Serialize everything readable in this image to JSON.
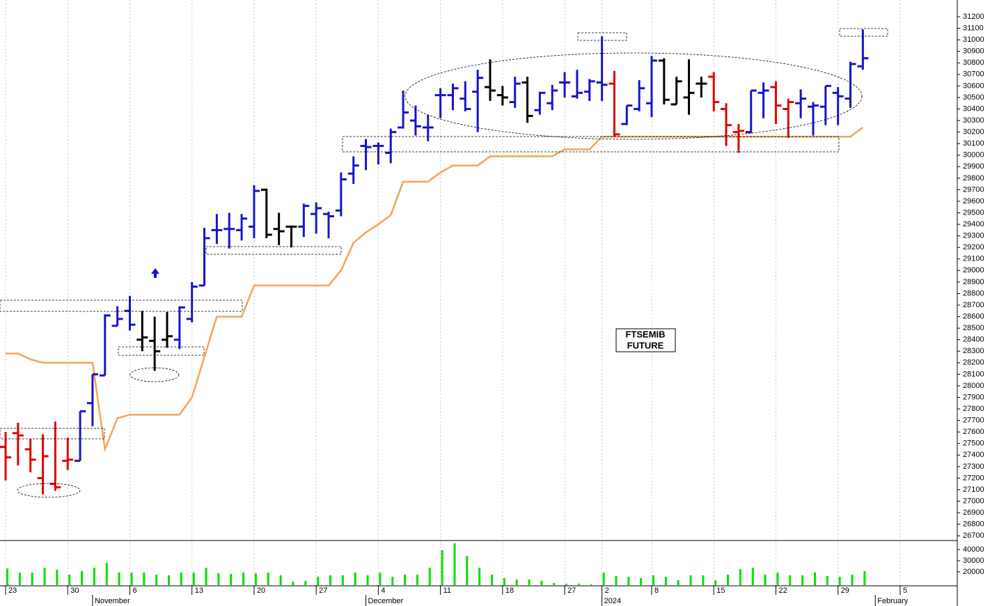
{
  "chart_data": {
    "type": "ohlc",
    "annotation": [
      "FTSEMIB",
      "FUTURE"
    ],
    "xlim": [
      -0.45,
      76.6
    ],
    "xticks": [
      {
        "value": 0,
        "label": "23"
      },
      {
        "value": 5,
        "label": "30"
      },
      {
        "value": 10,
        "label": "6"
      },
      {
        "value": 15,
        "label": "13"
      },
      {
        "value": 20,
        "label": "20"
      },
      {
        "value": 25,
        "label": "27"
      },
      {
        "value": 30,
        "label": "4"
      },
      {
        "value": 35,
        "label": "11"
      },
      {
        "value": 40,
        "label": "18"
      },
      {
        "value": 45,
        "label": "27"
      },
      {
        "value": 48,
        "label": "2"
      },
      {
        "value": 52,
        "label": "8"
      },
      {
        "value": 57,
        "label": "15"
      },
      {
        "value": 62,
        "label": "22"
      },
      {
        "value": 67,
        "label": "29"
      },
      {
        "value": 72,
        "label": "5"
      }
    ],
    "month_ticks": [
      {
        "value": 7,
        "label": "November"
      },
      {
        "value": 29,
        "label": "December"
      },
      {
        "value": 48,
        "label": "2024"
      },
      {
        "value": 70,
        "label": "February"
      }
    ],
    "grid": true,
    "ylim": [
      26665,
      31345
    ],
    "yticks": [
      26700,
      26800,
      26900,
      27000,
      27100,
      27200,
      27300,
      27400,
      27500,
      27600,
      27700,
      27800,
      27900,
      28000,
      28100,
      28200,
      28300,
      28400,
      28500,
      28600,
      28700,
      28800,
      28900,
      29000,
      29100,
      29200,
      29300,
      29400,
      29500,
      29600,
      29700,
      29800,
      29900,
      30000,
      30100,
      30200,
      30300,
      30400,
      30500,
      30600,
      30700,
      30800,
      30900,
      31000,
      31100,
      31200
    ],
    "open": [
      27470,
      27590,
      27450,
      27200,
      27150,
      27350,
      27350,
      27850,
      28090,
      28520,
      28650,
      28400,
      28390,
      28400,
      28400,
      28580,
      28870,
      29350,
      29360,
      29350,
      29380,
      29700,
      29360,
      29380,
      29380,
      29490,
      29490,
      29520,
      29840,
      30080,
      30080,
      30020,
      30240,
      30300,
      30240,
      30520,
      30520,
      30490,
      30550,
      30590,
      30520,
      30460,
      30630,
      30390,
      30450,
      30630,
      30510,
      30550,
      30630,
      30620,
      30270,
      30400,
      30450,
      30820,
      30440,
      30500,
      30620,
      30680,
      30400,
      30200,
      30200,
      30540,
      30590,
      30400,
      30450,
      30420,
      30420,
      30540,
      30490,
      30770
    ],
    "high": [
      27600,
      27680,
      27540,
      27580,
      27690,
      27550,
      27780,
      28100,
      28620,
      28690,
      28780,
      28650,
      28600,
      28640,
      28690,
      28900,
      29370,
      29490,
      29500,
      29490,
      29740,
      29710,
      29500,
      29390,
      29580,
      29590,
      29510,
      29850,
      29990,
      30140,
      30110,
      30230,
      30560,
      30430,
      30350,
      30580,
      30620,
      30640,
      30740,
      30830,
      30600,
      30680,
      30680,
      30550,
      30610,
      30720,
      30740,
      30660,
      31030,
      30730,
      30430,
      30650,
      30860,
      30840,
      30680,
      30830,
      30680,
      30720,
      30450,
      30270,
      30560,
      30630,
      30640,
      30490,
      30570,
      30460,
      30600,
      30590,
      30810,
      31090
    ],
    "low": [
      27180,
      27310,
      27250,
      27060,
      27090,
      27270,
      27350,
      27650,
      28090,
      28520,
      28480,
      28300,
      28130,
      28330,
      28320,
      28550,
      28870,
      29230,
      29190,
      29260,
      29280,
      29280,
      29220,
      29200,
      29290,
      29320,
      29280,
      29470,
      29750,
      29870,
      29920,
      29930,
      30230,
      30170,
      30120,
      30320,
      30390,
      30380,
      30200,
      30470,
      30430,
      30410,
      30280,
      30350,
      30390,
      30500,
      30490,
      30470,
      30470,
      30160,
      30260,
      30380,
      30330,
      30440,
      30440,
      30350,
      30500,
      30380,
      30080,
      30020,
      30190,
      30320,
      30270,
      30150,
      30320,
      30170,
      30260,
      30260,
      30410,
      30740
    ],
    "close": [
      27380,
      27570,
      27360,
      27390,
      27120,
      27360,
      27780,
      28100,
      28610,
      28580,
      28530,
      28420,
      28300,
      28430,
      28680,
      28860,
      29280,
      29350,
      29360,
      29450,
      29690,
      29310,
      29340,
      29380,
      29560,
      29540,
      29470,
      29790,
      29910,
      30070,
      30080,
      30200,
      30370,
      30250,
      30240,
      30520,
      30580,
      30400,
      30670,
      30560,
      30500,
      30620,
      30340,
      30540,
      30560,
      30630,
      30540,
      30640,
      30610,
      30180,
      30430,
      30580,
      30820,
      30480,
      30640,
      30540,
      30620,
      30460,
      30260,
      30210,
      30560,
      30560,
      30430,
      30460,
      30490,
      30430,
      30600,
      30510,
      30790,
      30840
    ],
    "bar_colors": [
      "#e00000",
      "#e00000",
      "#e00000",
      "#e00000",
      "#e00000",
      "#e00000",
      "#1515c8",
      "#1515c8",
      "#1515c8",
      "#1515c8",
      "#1515c8",
      "#000000",
      "#000000",
      "#000000",
      "#1515c8",
      "#1515c8",
      "#1515c8",
      "#1515c8",
      "#1515c8",
      "#1515c8",
      "#1515c8",
      "#000000",
      "#000000",
      "#000000",
      "#1515c8",
      "#1515c8",
      "#1515c8",
      "#1515c8",
      "#1515c8",
      "#1515c8",
      "#1515c8",
      "#1515c8",
      "#1515c8",
      "#1515c8",
      "#1515c8",
      "#1515c8",
      "#1515c8",
      "#1515c8",
      "#1515c8",
      "#000000",
      "#000000",
      "#1515c8",
      "#000000",
      "#1515c8",
      "#1515c8",
      "#1515c8",
      "#1515c8",
      "#1515c8",
      "#1515c8",
      "#e00000",
      "#1515c8",
      "#1515c8",
      "#1515c8",
      "#000000",
      "#000000",
      "#000000",
      "#000000",
      "#e00000",
      "#e00000",
      "#e00000",
      "#1515c8",
      "#1515c8",
      "#e00000",
      "#e00000",
      "#1515c8",
      "#1515c8",
      "#1515c8",
      "#1515c8",
      "#1515c8",
      "#1515c8"
    ],
    "stop_color": "#f5a35a",
    "stop": [
      28280,
      28280,
      28230,
      28200,
      28200,
      28200,
      28200,
      28200,
      27450,
      27720,
      27750,
      27750,
      27750,
      27750,
      27750,
      27900,
      28250,
      28600,
      28600,
      28600,
      28870,
      28870,
      28870,
      28870,
      28870,
      28870,
      28870,
      29000,
      29240,
      29330,
      29400,
      29480,
      29770,
      29770,
      29770,
      29850,
      29910,
      29910,
      29910,
      29990,
      29990,
      29990,
      29990,
      29990,
      29990,
      30050,
      30050,
      30050,
      30160,
      30160,
      30160,
      30160,
      30160,
      30160,
      30160,
      30160,
      30160,
      30160,
      30160,
      30160,
      30160,
      30160,
      30160,
      30160,
      30160,
      30160,
      30160,
      30160,
      30160,
      30240
    ],
    "volume_color": "#00e000",
    "volume_ylim": [
      8100,
      47500
    ],
    "volume_ticks": [
      20000,
      30000,
      40000
    ],
    "volume": [
      23000,
      19400,
      19400,
      23800,
      21900,
      17500,
      20600,
      23800,
      28100,
      19400,
      19400,
      19400,
      17500,
      16900,
      19400,
      19400,
      23800,
      18800,
      18100,
      19400,
      18800,
      19400,
      16900,
      11250,
      11900,
      15600,
      16900,
      16900,
      19400,
      16900,
      19400,
      15600,
      17500,
      17500,
      23800,
      39400,
      45600,
      34400,
      23800,
      17500,
      14400,
      13100,
      13100,
      11900,
      10000,
      9400,
      9400,
      8750,
      19400,
      16250,
      15600,
      14400,
      16900,
      15600,
      12500,
      16900,
      16900,
      12500,
      17500,
      22500,
      23800,
      17500,
      19400,
      16900,
      16900,
      19400,
      16250,
      15600,
      17500,
      20600
    ]
  }
}
